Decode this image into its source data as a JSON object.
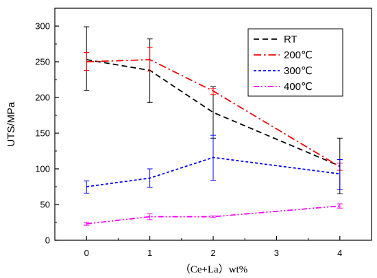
{
  "chart_data": {
    "type": "line",
    "xlabel": "（Ce+La）wt%",
    "ylabel": "UTS/MPa",
    "xlim": [
      -0.5,
      4.5
    ],
    "ylim": [
      0,
      325
    ],
    "xticks": [
      0,
      1,
      2,
      3,
      4
    ],
    "yticks": [
      0,
      50,
      100,
      150,
      200,
      250,
      300
    ],
    "grid": false,
    "legend_position": "top-right",
    "series": [
      {
        "name": "RT",
        "color": "#000000",
        "line_style": "dash",
        "x": [
          0,
          1,
          2,
          4
        ],
        "y": [
          253,
          238,
          179,
          104
        ],
        "err_low": [
          210,
          193,
          143,
          65
        ],
        "err_high": [
          299,
          282,
          215,
          143
        ]
      },
      {
        "name": "200℃",
        "color": "#FF0000",
        "line_style": "dash-dot",
        "x": [
          0,
          1,
          2,
          4
        ],
        "y": [
          250,
          253,
          209,
          103
        ],
        "err_low": [
          238,
          237,
          204,
          98
        ],
        "err_high": [
          263,
          270,
          213,
          108
        ]
      },
      {
        "name": "300℃",
        "color": "#0000FF",
        "line_style": "short-dash",
        "x": [
          0,
          1,
          2,
          4
        ],
        "y": [
          75,
          87,
          116,
          93
        ],
        "err_low": [
          66,
          74,
          84,
          71
        ],
        "err_high": [
          83,
          100,
          147,
          113
        ]
      },
      {
        "name": "400℃",
        "color": "#FF00FF",
        "line_style": "dash-dot-dot",
        "x": [
          0,
          1,
          2,
          4
        ],
        "y": [
          23,
          33,
          33,
          48
        ],
        "err_low": [
          21,
          29,
          32,
          45
        ],
        "err_high": [
          25,
          37,
          34,
          51
        ]
      }
    ]
  }
}
